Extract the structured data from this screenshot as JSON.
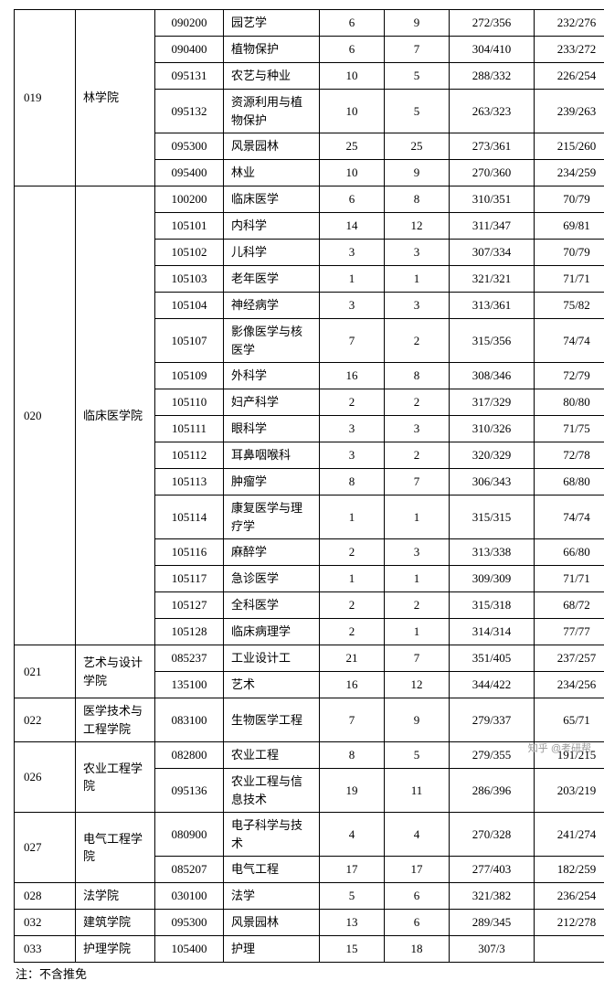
{
  "groups": [
    {
      "code": "019",
      "name": "林学院",
      "rows": [
        {
          "sc": "090200",
          "sn": "园艺学",
          "a": "6",
          "b": "9",
          "c": "272/356",
          "d": "232/276"
        },
        {
          "sc": "090400",
          "sn": "植物保护",
          "a": "6",
          "b": "7",
          "c": "304/410",
          "d": "233/272"
        },
        {
          "sc": "095131",
          "sn": "农艺与种业",
          "a": "10",
          "b": "5",
          "c": "288/332",
          "d": "226/254"
        },
        {
          "sc": "095132",
          "sn": "资源利用与植物保护",
          "a": "10",
          "b": "5",
          "c": "263/323",
          "d": "239/263"
        },
        {
          "sc": "095300",
          "sn": "风景园林",
          "a": "25",
          "b": "25",
          "c": "273/361",
          "d": "215/260"
        },
        {
          "sc": "095400",
          "sn": "林业",
          "a": "10",
          "b": "9",
          "c": "270/360",
          "d": "234/259"
        }
      ]
    },
    {
      "code": "020",
      "name": "临床医学院",
      "rows": [
        {
          "sc": "100200",
          "sn": "临床医学",
          "a": "6",
          "b": "8",
          "c": "310/351",
          "d": "70/79"
        },
        {
          "sc": "105101",
          "sn": "内科学",
          "a": "14",
          "b": "12",
          "c": "311/347",
          "d": "69/81"
        },
        {
          "sc": "105102",
          "sn": "儿科学",
          "a": "3",
          "b": "3",
          "c": "307/334",
          "d": "70/79"
        },
        {
          "sc": "105103",
          "sn": "老年医学",
          "a": "1",
          "b": "1",
          "c": "321/321",
          "d": "71/71"
        },
        {
          "sc": "105104",
          "sn": "神经病学",
          "a": "3",
          "b": "3",
          "c": "313/361",
          "d": "75/82"
        },
        {
          "sc": "105107",
          "sn": "影像医学与核医学",
          "a": "7",
          "b": "2",
          "c": "315/356",
          "d": "74/74"
        },
        {
          "sc": "105109",
          "sn": "外科学",
          "a": "16",
          "b": "8",
          "c": "308/346",
          "d": "72/79"
        },
        {
          "sc": "105110",
          "sn": "妇产科学",
          "a": "2",
          "b": "2",
          "c": "317/329",
          "d": "80/80"
        },
        {
          "sc": "105111",
          "sn": "眼科学",
          "a": "3",
          "b": "3",
          "c": "310/326",
          "d": "71/75"
        },
        {
          "sc": "105112",
          "sn": "耳鼻咽喉科",
          "a": "3",
          "b": "2",
          "c": "320/329",
          "d": "72/78"
        },
        {
          "sc": "105113",
          "sn": "肿瘤学",
          "a": "8",
          "b": "7",
          "c": "306/343",
          "d": "68/80"
        },
        {
          "sc": "105114",
          "sn": "康复医学与理疗学",
          "a": "1",
          "b": "1",
          "c": "315/315",
          "d": "74/74"
        },
        {
          "sc": "105116",
          "sn": "麻醉学",
          "a": "2",
          "b": "3",
          "c": "313/338",
          "d": "66/80"
        },
        {
          "sc": "105117",
          "sn": "急诊医学",
          "a": "1",
          "b": "1",
          "c": "309/309",
          "d": "71/71"
        },
        {
          "sc": "105127",
          "sn": "全科医学",
          "a": "2",
          "b": "2",
          "c": "315/318",
          "d": "68/72"
        },
        {
          "sc": "105128",
          "sn": "临床病理学",
          "a": "2",
          "b": "1",
          "c": "314/314",
          "d": "77/77"
        }
      ]
    },
    {
      "code": "021",
      "name": "艺术与设计学院",
      "rows": [
        {
          "sc": "085237",
          "sn": "工业设计工",
          "a": "21",
          "b": "7",
          "c": "351/405",
          "d": "237/257"
        },
        {
          "sc": "135100",
          "sn": "艺术",
          "a": "16",
          "b": "12",
          "c": "344/422",
          "d": "234/256"
        }
      ]
    },
    {
      "code": "022",
      "name": "医学技术与工程学院",
      "rows": [
        {
          "sc": "083100",
          "sn": "生物医学工程",
          "a": "7",
          "b": "9",
          "c": "279/337",
          "d": "65/71"
        }
      ]
    },
    {
      "code": "026",
      "name": "农业工程学院",
      "rows": [
        {
          "sc": "082800",
          "sn": "农业工程",
          "a": "8",
          "b": "5",
          "c": "279/355",
          "d": "191/215"
        },
        {
          "sc": "095136",
          "sn": "农业工程与信息技术",
          "a": "19",
          "b": "11",
          "c": "286/396",
          "d": "203/219"
        }
      ]
    },
    {
      "code": "027",
      "name": "电气工程学院",
      "rows": [
        {
          "sc": "080900",
          "sn": "电子科学与技术",
          "a": "4",
          "b": "4",
          "c": "270/328",
          "d": "241/274"
        },
        {
          "sc": "085207",
          "sn": "电气工程",
          "a": "17",
          "b": "17",
          "c": "277/403",
          "d": "182/259"
        }
      ]
    },
    {
      "code": "028",
      "name": "法学院",
      "rows": [
        {
          "sc": "030100",
          "sn": "法学",
          "a": "5",
          "b": "6",
          "c": "321/382",
          "d": "236/254"
        }
      ]
    },
    {
      "code": "032",
      "name": "建筑学院",
      "rows": [
        {
          "sc": "095300",
          "sn": "风景园林",
          "a": "13",
          "b": "6",
          "c": "289/345",
          "d": "212/278"
        }
      ]
    },
    {
      "code": "033",
      "name": "护理学院",
      "rows": [
        {
          "sc": "105400",
          "sn": "护理",
          "a": "15",
          "b": "18",
          "c": "307/3",
          "d": ""
        }
      ]
    }
  ],
  "footer": "注：不含推免",
  "watermark": "知乎 @考研帮"
}
